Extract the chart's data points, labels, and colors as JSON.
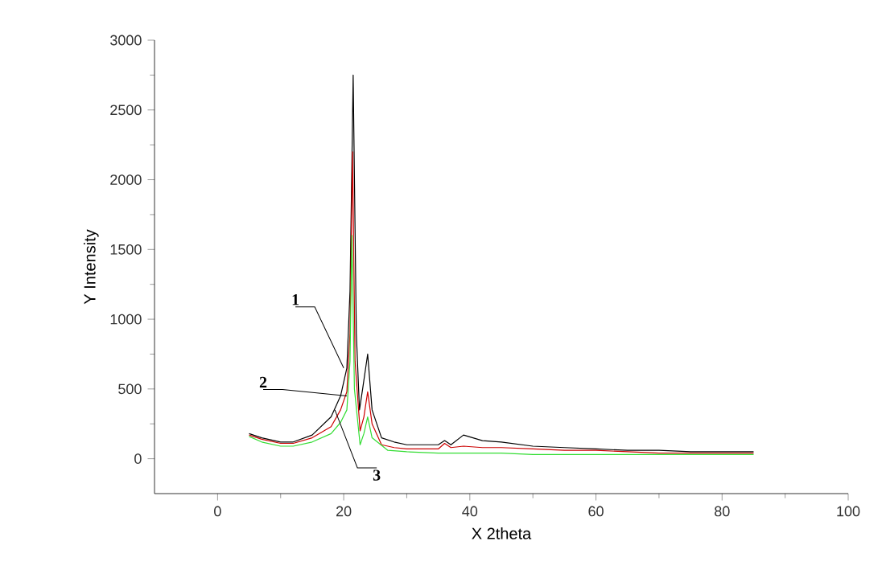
{
  "chart_data": {
    "type": "line",
    "xlabel": "X 2theta",
    "ylabel": "Y Intensity",
    "xlim": [
      -10,
      100
    ],
    "ylim": [
      -250,
      3000
    ],
    "xticks": [
      0,
      20,
      40,
      60,
      80,
      100
    ],
    "yticks": [
      0,
      500,
      1000,
      1500,
      2000,
      2500,
      3000
    ],
    "grid": false,
    "marker": "none",
    "line_style": "solid",
    "series": [
      {
        "color": "#000000",
        "x": [
          5,
          7,
          10,
          12,
          15,
          18,
          19.5,
          20.5,
          21,
          21.5,
          22,
          22.5,
          23,
          23.8,
          24.5,
          26,
          28,
          30,
          33,
          35,
          36,
          37,
          39,
          42,
          45,
          50,
          55,
          60,
          65,
          70,
          75,
          80,
          85
        ],
        "values": [
          180,
          150,
          120,
          120,
          170,
          300,
          450,
          650,
          1200,
          2750,
          900,
          350,
          500,
          750,
          350,
          150,
          120,
          100,
          100,
          100,
          130,
          100,
          170,
          130,
          120,
          90,
          80,
          70,
          60,
          60,
          50,
          50,
          50
        ]
      },
      {
        "color": "#cc0000",
        "x": [
          5,
          7,
          10,
          12,
          15,
          18,
          19.5,
          20.5,
          21,
          21.4,
          21.8,
          22.6,
          23.2,
          23.8,
          24.5,
          26,
          28,
          30,
          33,
          35,
          36,
          37,
          39,
          42,
          45,
          50,
          55,
          60,
          65,
          70,
          75,
          80,
          85
        ],
        "values": [
          170,
          140,
          110,
          110,
          150,
          230,
          350,
          480,
          900,
          2200,
          700,
          200,
          300,
          480,
          250,
          100,
          80,
          70,
          70,
          70,
          110,
          80,
          90,
          80,
          80,
          70,
          60,
          60,
          50,
          40,
          40,
          40,
          40
        ]
      },
      {
        "color": "#33dd33",
        "x": [
          5,
          7,
          10,
          12,
          15,
          18,
          19.5,
          20.5,
          21,
          21.3,
          21.7,
          22.6,
          23.2,
          23.8,
          24.5,
          27,
          30,
          35,
          40,
          45,
          50,
          55,
          60,
          65,
          70,
          75,
          80,
          85
        ],
        "values": [
          160,
          120,
          90,
          90,
          120,
          180,
          260,
          350,
          700,
          1600,
          500,
          100,
          180,
          300,
          150,
          60,
          50,
          40,
          40,
          40,
          30,
          30,
          30,
          30,
          30,
          30,
          30,
          30
        ]
      }
    ],
    "annotations": [
      {
        "text": "1",
        "x": 20,
        "y": 650
      },
      {
        "text": "2",
        "x": 20.5,
        "y": 450
      },
      {
        "text": "3",
        "x": 18.6,
        "y": 350
      }
    ]
  }
}
